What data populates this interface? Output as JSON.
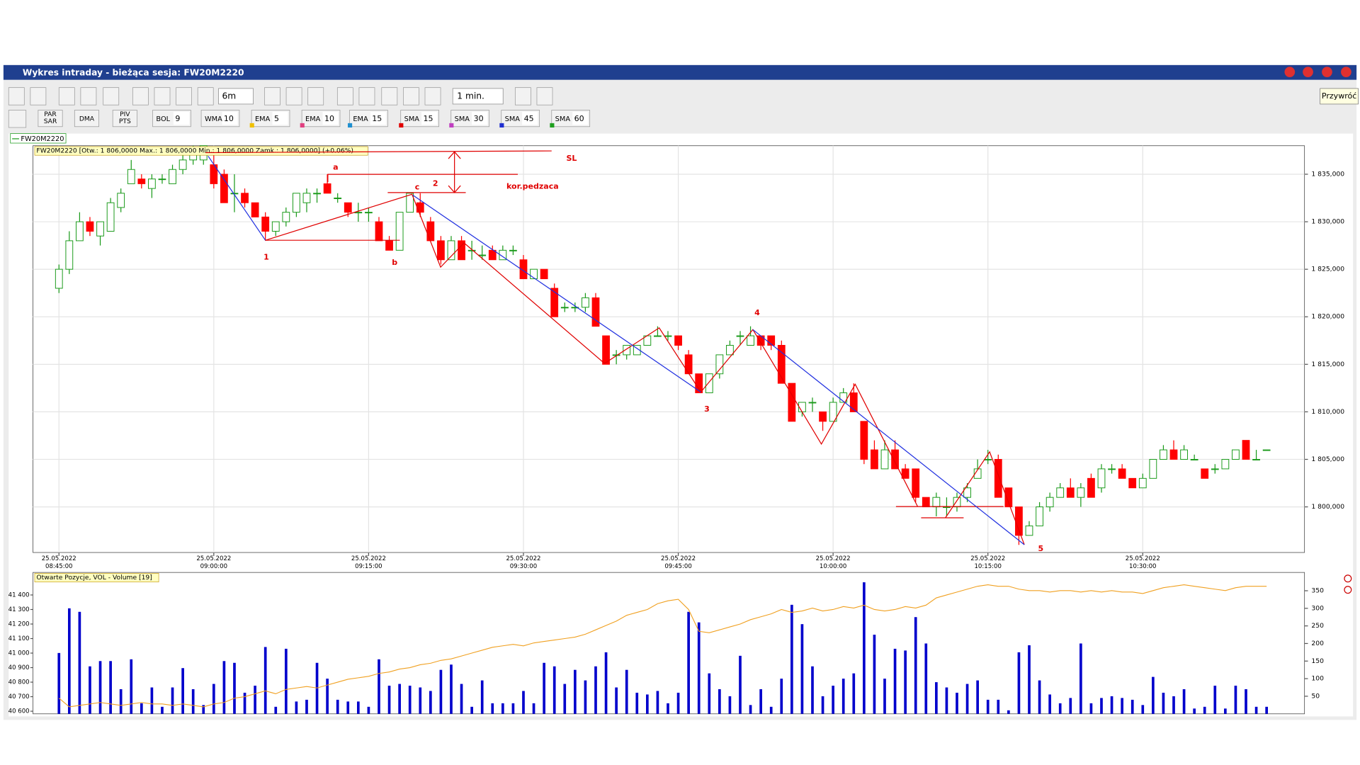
{
  "window": {
    "title": "Wykres intraday - bieżąca sesja: FW20M2220",
    "tooltip": "Przywróć"
  },
  "toolbar": {
    "interval": "6m",
    "period": "1 min.",
    "buttons": [
      [
        "PAR",
        "SAR"
      ],
      [
        "DMA"
      ],
      [
        "PIV",
        "PTS"
      ]
    ],
    "indicators": [
      {
        "name": "BOL",
        "period": 9
      },
      {
        "name": "WMA",
        "period": 10
      },
      {
        "name": "EMA",
        "period": 5
      },
      {
        "name": "EMA",
        "period": 10
      },
      {
        "name": "EMA",
        "period": 15
      },
      {
        "name": "SMA",
        "period": 15
      },
      {
        "name": "SMA",
        "period": 30
      },
      {
        "name": "SMA",
        "period": 45
      },
      {
        "name": "SMA",
        "period": 60
      }
    ]
  },
  "chart_data": {
    "type": "candlestick",
    "legend": "FW20M2220",
    "info": "FW20M2220 [Otw.: 1 806,0000  Max.: 1 806,0000  Min.: 1 806,0000  Zamk.: 1 806,0000] (+0.06%)",
    "up_color": "#1a9a1a",
    "down_color": "#ff0000",
    "grid": true,
    "xlim": [
      -2.52,
      120.67
    ],
    "xticks": [
      {
        "value": 0,
        "date": "25.05.2022",
        "time": "08:45:00"
      },
      {
        "value": 15,
        "date": "25.05.2022",
        "time": "09:00:00"
      },
      {
        "value": 30,
        "date": "25.05.2022",
        "time": "09:15:00"
      },
      {
        "value": 45,
        "date": "25.05.2022",
        "time": "09:30:00"
      },
      {
        "value": 60,
        "date": "25.05.2022",
        "time": "09:45:00"
      },
      {
        "value": 75,
        "date": "25.05.2022",
        "time": "10:00:00"
      },
      {
        "value": 90,
        "date": "25.05.2022",
        "time": "10:15:00"
      },
      {
        "value": 105,
        "date": "25.05.2022",
        "time": "10:30:00"
      }
    ],
    "ylim": [
      1795.2,
      1838
    ],
    "yticks": [
      {
        "value": 1800,
        "label": "1 800,000"
      },
      {
        "value": 1805,
        "label": "1 805,000"
      },
      {
        "value": 1810,
        "label": "1 810,000"
      },
      {
        "value": 1815,
        "label": "1 815,000"
      },
      {
        "value": 1820,
        "label": "1 820,000"
      },
      {
        "value": 1825,
        "label": "1 825,000"
      },
      {
        "value": 1830,
        "label": "1 830,000"
      },
      {
        "value": 1835,
        "label": "1 835,000"
      }
    ],
    "ohlc": [
      [
        1823,
        1825.5,
        1822.5,
        1825
      ],
      [
        1825,
        1829,
        1824.5,
        1828
      ],
      [
        1828,
        1831,
        1828,
        1830
      ],
      [
        1830,
        1830.5,
        1828.5,
        1829
      ],
      [
        1828.5,
        1830,
        1827.5,
        1830
      ],
      [
        1829,
        1832.5,
        1829,
        1832
      ],
      [
        1831.5,
        1833.5,
        1831,
        1833
      ],
      [
        1834,
        1836.5,
        1834,
        1835.5
      ],
      [
        1834.5,
        1835,
        1833.5,
        1834
      ],
      [
        1833.5,
        1835,
        1832.5,
        1834.5
      ],
      [
        1834.5,
        1835,
        1834,
        1834.5
      ],
      [
        1834,
        1836,
        1834,
        1835.5
      ],
      [
        1835.5,
        1837,
        1835,
        1836.5
      ],
      [
        1836.5,
        1838,
        1836,
        1837.5
      ],
      [
        1836.5,
        1838,
        1836,
        1838
      ],
      [
        1836,
        1837.5,
        1833.5,
        1834
      ],
      [
        1835,
        1835.5,
        1832,
        1832
      ],
      [
        1833,
        1835,
        1831,
        1833
      ],
      [
        1833,
        1833.5,
        1831.5,
        1832
      ],
      [
        1832,
        1832,
        1830.5,
        1830.5
      ],
      [
        1830.5,
        1831,
        1828,
        1829
      ],
      [
        1829,
        1830,
        1828.5,
        1830
      ],
      [
        1830,
        1831.5,
        1829.5,
        1831
      ],
      [
        1831,
        1833,
        1830.5,
        1833
      ],
      [
        1832,
        1833.5,
        1831,
        1833
      ],
      [
        1833,
        1833.5,
        1832,
        1833
      ],
      [
        1834,
        1835,
        1833,
        1833
      ],
      [
        1832.5,
        1833,
        1832,
        1832.5
      ],
      [
        1832,
        1832,
        1830.5,
        1831
      ],
      [
        1831,
        1832,
        1830,
        1831
      ],
      [
        1831,
        1831.5,
        1830,
        1831
      ],
      [
        1830,
        1830.5,
        1828,
        1828
      ],
      [
        1828,
        1828.5,
        1827,
        1827
      ],
      [
        1827,
        1831,
        1827,
        1831
      ],
      [
        1831,
        1833,
        1831,
        1833
      ],
      [
        1832,
        1833,
        1830.5,
        1831
      ],
      [
        1830,
        1830.5,
        1828,
        1828
      ],
      [
        1828,
        1828.5,
        1825.5,
        1826
      ],
      [
        1826,
        1828.5,
        1826,
        1828
      ],
      [
        1828,
        1828.5,
        1826,
        1826
      ],
      [
        1827,
        1828,
        1826,
        1827
      ],
      [
        1826.5,
        1827.5,
        1826,
        1826.5
      ],
      [
        1827,
        1827.5,
        1826,
        1826
      ],
      [
        1826,
        1827.5,
        1826,
        1827
      ],
      [
        1827,
        1827.5,
        1826.5,
        1827
      ],
      [
        1826,
        1826.5,
        1824,
        1824
      ],
      [
        1824,
        1825,
        1824,
        1825
      ],
      [
        1825,
        1825,
        1824,
        1824
      ],
      [
        1823,
        1823.5,
        1820,
        1820
      ],
      [
        1821,
        1821.5,
        1820.5,
        1821
      ],
      [
        1821,
        1821.5,
        1820.5,
        1821
      ],
      [
        1821,
        1822.5,
        1820.5,
        1822
      ],
      [
        1822,
        1822.5,
        1819,
        1819
      ],
      [
        1818,
        1818,
        1815,
        1815
      ],
      [
        1816,
        1816.5,
        1815,
        1816
      ],
      [
        1816,
        1817,
        1815.5,
        1817
      ],
      [
        1816,
        1817,
        1816,
        1817
      ],
      [
        1817,
        1818,
        1817,
        1818
      ],
      [
        1818,
        1819,
        1818,
        1818
      ],
      [
        1818,
        1818.5,
        1817.5,
        1818
      ],
      [
        1818,
        1818,
        1816.5,
        1817
      ],
      [
        1816,
        1816.5,
        1814,
        1814
      ],
      [
        1814,
        1814,
        1812,
        1812
      ],
      [
        1812,
        1814,
        1812,
        1814
      ],
      [
        1814,
        1816,
        1813.5,
        1816
      ],
      [
        1816,
        1817.5,
        1816,
        1817
      ],
      [
        1818,
        1818.5,
        1817,
        1818
      ],
      [
        1817,
        1819,
        1817,
        1818
      ],
      [
        1818,
        1818,
        1816.5,
        1817
      ],
      [
        1818,
        1818,
        1816.5,
        1817
      ],
      [
        1817,
        1817.5,
        1813,
        1813
      ],
      [
        1813,
        1813,
        1809,
        1809
      ],
      [
        1810,
        1811,
        1809.5,
        1811
      ],
      [
        1811,
        1811.5,
        1810,
        1811
      ],
      [
        1810,
        1810,
        1808,
        1809
      ],
      [
        1809,
        1811.5,
        1809,
        1811
      ],
      [
        1811,
        1812.5,
        1811,
        1812
      ],
      [
        1812,
        1813,
        1810,
        1810
      ],
      [
        1809,
        1809,
        1804.5,
        1805
      ],
      [
        1806,
        1807,
        1804,
        1804
      ],
      [
        1804,
        1807,
        1804,
        1806
      ],
      [
        1806,
        1807,
        1804,
        1804
      ],
      [
        1804,
        1804.5,
        1803,
        1803
      ],
      [
        1804,
        1804,
        1800.5,
        1801
      ],
      [
        1801,
        1801,
        1800,
        1800
      ],
      [
        1800,
        1801.5,
        1799,
        1801
      ],
      [
        1800,
        1801,
        1799,
        1800
      ],
      [
        1800,
        1801.5,
        1799.5,
        1801
      ],
      [
        1801,
        1802.5,
        1800.5,
        1802
      ],
      [
        1803,
        1805,
        1803,
        1804
      ],
      [
        1805,
        1806,
        1804.5,
        1805
      ],
      [
        1805,
        1805.5,
        1801,
        1801
      ],
      [
        1802,
        1802,
        1800,
        1800
      ],
      [
        1800,
        1800,
        1796,
        1797
      ],
      [
        1797,
        1798.5,
        1797,
        1798
      ],
      [
        1798,
        1800.5,
        1798,
        1800
      ],
      [
        1800,
        1801.5,
        1799.5,
        1801
      ],
      [
        1801,
        1802.5,
        1801,
        1802
      ],
      [
        1802,
        1803,
        1801,
        1801
      ],
      [
        1801,
        1802.5,
        1800,
        1802
      ],
      [
        1803,
        1803.5,
        1801,
        1801
      ],
      [
        1802,
        1804.5,
        1801.5,
        1804
      ],
      [
        1804,
        1804.5,
        1803.5,
        1804
      ],
      [
        1804,
        1804.5,
        1803,
        1803
      ],
      [
        1803,
        1803,
        1802,
        1802
      ],
      [
        1802,
        1803.5,
        1802,
        1803
      ],
      [
        1803,
        1805,
        1803,
        1805
      ],
      [
        1805,
        1806.5,
        1805,
        1806
      ],
      [
        1806,
        1807,
        1805,
        1805
      ],
      [
        1805,
        1806.5,
        1805,
        1806
      ],
      [
        1805,
        1805.5,
        1805,
        1805
      ],
      [
        1804,
        1804,
        1803,
        1803
      ],
      [
        1804,
        1804.5,
        1803.5,
        1804
      ],
      [
        1804,
        1805,
        1804,
        1805
      ],
      [
        1805,
        1806,
        1805,
        1806
      ],
      [
        1807,
        1807,
        1805,
        1805
      ],
      [
        1805,
        1806,
        1805,
        1805
      ],
      [
        1806,
        1806,
        1806,
        1806
      ]
    ],
    "annotations": [
      "SL",
      "kor.pedzaca",
      "a",
      "b",
      "c",
      "1",
      "2",
      "3",
      "4",
      "5"
    ]
  },
  "volume_panel": {
    "title": "Otwarte Pozycje, VOL - Volume [19]",
    "volume_color": "#0000cc",
    "oi_color": "#f0a020",
    "ylim": [
      0,
      402
    ],
    "yticks": [
      50,
      100,
      150,
      200,
      250,
      300,
      350
    ],
    "y2lim": [
      40582,
      41555
    ],
    "y2ticks": [
      {
        "value": 40600,
        "label": "40 600"
      },
      {
        "value": 40700,
        "label": "40 700"
      },
      {
        "value": 40800,
        "label": "40 800"
      },
      {
        "value": 40900,
        "label": "40 900"
      },
      {
        "value": 41000,
        "label": "41 000"
      },
      {
        "value": 41100,
        "label": "41 100"
      },
      {
        "value": 41200,
        "label": "41 200"
      },
      {
        "value": 41300,
        "label": "41 300"
      },
      {
        "value": 41400,
        "label": "41 400"
      }
    ],
    "volume": [
      173,
      300,
      290,
      135,
      150,
      150,
      70,
      155,
      30,
      75,
      20,
      75,
      130,
      70,
      25,
      85,
      150,
      145,
      60,
      80,
      190,
      20,
      185,
      35,
      40,
      145,
      100,
      40,
      35,
      35,
      20,
      155,
      80,
      85,
      80,
      75,
      65,
      125,
      140,
      85,
      20,
      95,
      30,
      30,
      30,
      65,
      30,
      145,
      135,
      85,
      125,
      95,
      135,
      175,
      75,
      125,
      60,
      55,
      65,
      30,
      60,
      290,
      260,
      115,
      70,
      50,
      165,
      25,
      70,
      20,
      100,
      310,
      255,
      135,
      50,
      80,
      100,
      115,
      374,
      225,
      100,
      185,
      180,
      275,
      200,
      90,
      75,
      60,
      85,
      95,
      40,
      40,
      10,
      175,
      195,
      95,
      55,
      30,
      45,
      200,
      30,
      45,
      50,
      45,
      40,
      25,
      105,
      60,
      50,
      70,
      15,
      20,
      80,
      15,
      80,
      70,
      20,
      20
    ],
    "open_interest": [
      40690,
      40630,
      40640,
      40650,
      40660,
      40650,
      40640,
      40650,
      40660,
      40650,
      40650,
      40640,
      40650,
      40640,
      40630,
      40650,
      40660,
      40690,
      40700,
      40720,
      40740,
      40720,
      40750,
      40760,
      40770,
      40760,
      40780,
      40800,
      40820,
      40830,
      40840,
      40860,
      40870,
      40890,
      40900,
      40920,
      40930,
      40950,
      40960,
      40980,
      41000,
      41020,
      41040,
      41050,
      41060,
      41050,
      41070,
      41080,
      41090,
      41100,
      41110,
      41130,
      41160,
      41190,
      41220,
      41260,
      41280,
      41300,
      41340,
      41360,
      41370,
      41300,
      41150,
      41140,
      41160,
      41180,
      41200,
      41230,
      41250,
      41270,
      41300,
      41280,
      41290,
      41310,
      41290,
      41300,
      41320,
      41310,
      41330,
      41300,
      41290,
      41300,
      41320,
      41310,
      41330,
      41380,
      41400,
      41420,
      41440,
      41460,
      41470,
      41460,
      41460,
      41440,
      41430,
      41430,
      41420,
      41430,
      41430,
      41420,
      41430,
      41420,
      41430,
      41420,
      41420,
      41410,
      41430,
      41450,
      41460,
      41470,
      41460,
      41450,
      41440,
      41430,
      41450,
      41460,
      41460,
      41460
    ]
  }
}
